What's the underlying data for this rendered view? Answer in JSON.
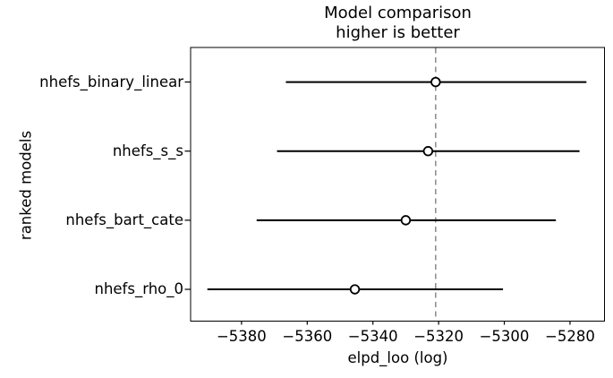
{
  "chart_data": {
    "type": "scatter",
    "title": "Model comparison",
    "subtitle": "higher is better",
    "xlabel": "elpd_loo (log)",
    "ylabel": "ranked models",
    "categories": [
      "nhefs_binary_linear",
      "nhefs_s_s",
      "nhefs_bart_cate",
      "nhefs_rho_0"
    ],
    "series": [
      {
        "name": "elpd_loo",
        "values": [
          -5320.9,
          -5323.2,
          -5330.0,
          -5345.5
        ],
        "error_low": [
          -5366.5,
          -5369.2,
          -5375.4,
          -5390.4
        ],
        "error_high": [
          -5275.0,
          -5277.1,
          -5284.3,
          -5300.4
        ]
      }
    ],
    "reference_line": {
      "x": -5320.9,
      "style": "dashed",
      "color": "#808080"
    },
    "x_ticks": [
      {
        "value": -5380,
        "label": "−5380"
      },
      {
        "value": -5360,
        "label": "−5360"
      },
      {
        "value": -5340,
        "label": "−5340"
      },
      {
        "value": -5320,
        "label": "−5320"
      },
      {
        "value": -5300,
        "label": "−5300"
      },
      {
        "value": -5280,
        "label": "−5280"
      }
    ],
    "xlim": [
      -5395.5,
      -5269.5
    ],
    "y_positions": [
      3,
      2,
      1,
      0
    ],
    "ylim": [
      -0.46,
      3.5
    ],
    "grid": false,
    "legend": false,
    "marker": "open-circle",
    "colors": {
      "data": "#000000",
      "reference": "#808080",
      "text": "#000000"
    }
  }
}
